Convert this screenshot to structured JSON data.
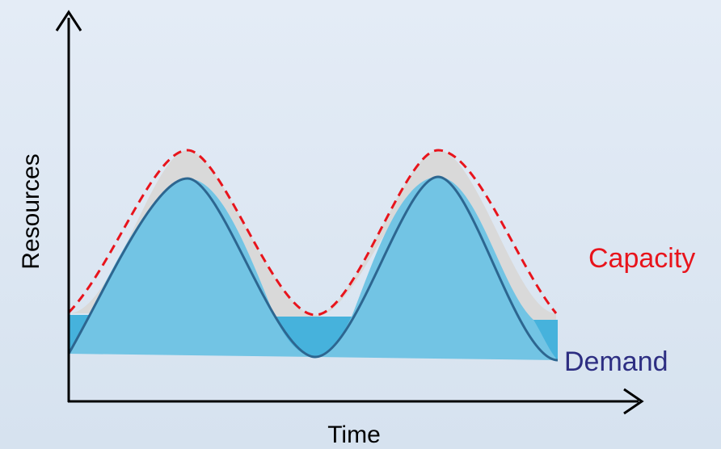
{
  "labels": {
    "y_axis": "Resources",
    "x_axis": "Time",
    "capacity": "Capacity",
    "demand": "Demand"
  },
  "colors": {
    "background_top": "#e4ecf6",
    "background_bottom": "#d6e2ef",
    "axis": "#000000",
    "capacity_line": "#e8141c",
    "capacity_text": "#e8141c",
    "demand_line": "#2d6690",
    "demand_fill": "#72c4e4",
    "dip_fill": "#46b2dc",
    "headroom_fill": "#d9d9d9",
    "demand_text": "#2d2e82"
  }
}
